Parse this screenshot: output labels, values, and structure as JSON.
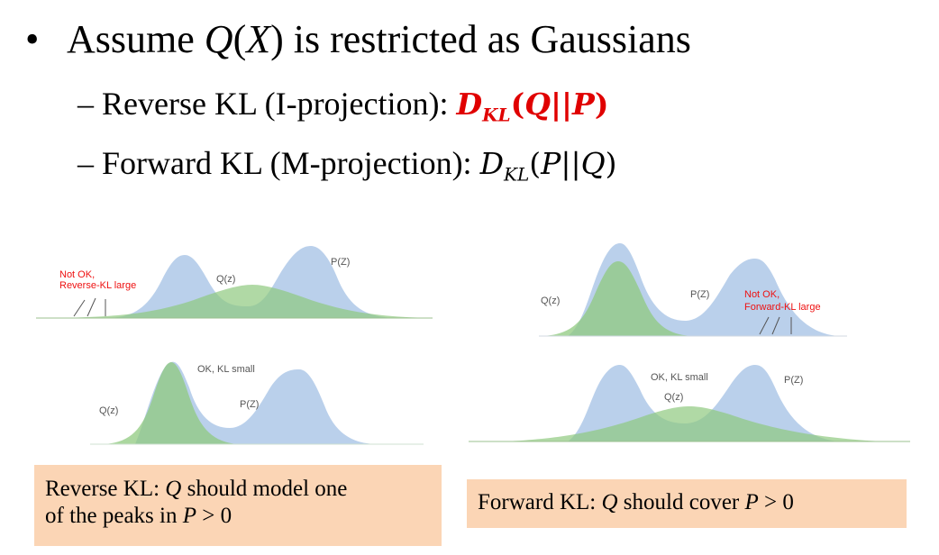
{
  "bullet": {
    "char": "•",
    "pre": "Assume ",
    "q": "Q",
    "lparen": "(",
    "x": "X",
    "rparen": ")",
    "post": " is restricted as Gaussians"
  },
  "reverse_kl": {
    "dash": "– ",
    "label": "Reverse KL (I-projection): ",
    "d": "D",
    "sub": "KL",
    "args_open": "(",
    "arg1": "Q",
    "sep": "||",
    "arg2": "P",
    "args_close": ")"
  },
  "forward_kl": {
    "dash": "– ",
    "label": "Forward KL (M-projection): ",
    "d": "D",
    "sub": "KL",
    "args_open": "(",
    "arg1": "P",
    "sep": "||",
    "arg2": "Q",
    "args_close": ")"
  },
  "panels": {
    "top_left": {
      "p_label": "P(Z)",
      "q_label": "Q(z)",
      "warn_line1": "Not OK,",
      "warn_line2": "Reverse-KL large"
    },
    "bottom_left": {
      "ok_label": "OK, KL small",
      "q_label": "Q(z)",
      "p_label": "P(Z)"
    },
    "top_right": {
      "q_label": "Q(z)",
      "p_label": "P(Z)",
      "warn_line1": "Not OK,",
      "warn_line2": "Forward-KL large"
    },
    "bottom_right": {
      "ok_label": "OK, KL small",
      "q_label": "Q(z)",
      "p_label": "P(Z)"
    }
  },
  "colors": {
    "p_fill": "#aec8e8",
    "q_fill": "#8fc97f",
    "warn": "#e11111",
    "box_fill": "#fbd5b5"
  },
  "box_reverse": {
    "pre": "Reverse KL: ",
    "q": "Q",
    "mid": " should model one",
    "line2_pre": "of the peaks in ",
    "p": "P",
    "gt": " > 0"
  },
  "box_forward": {
    "pre": "Forward KL: ",
    "q": "Q",
    "mid": " should cover ",
    "p": "P",
    "gt": " > 0"
  }
}
